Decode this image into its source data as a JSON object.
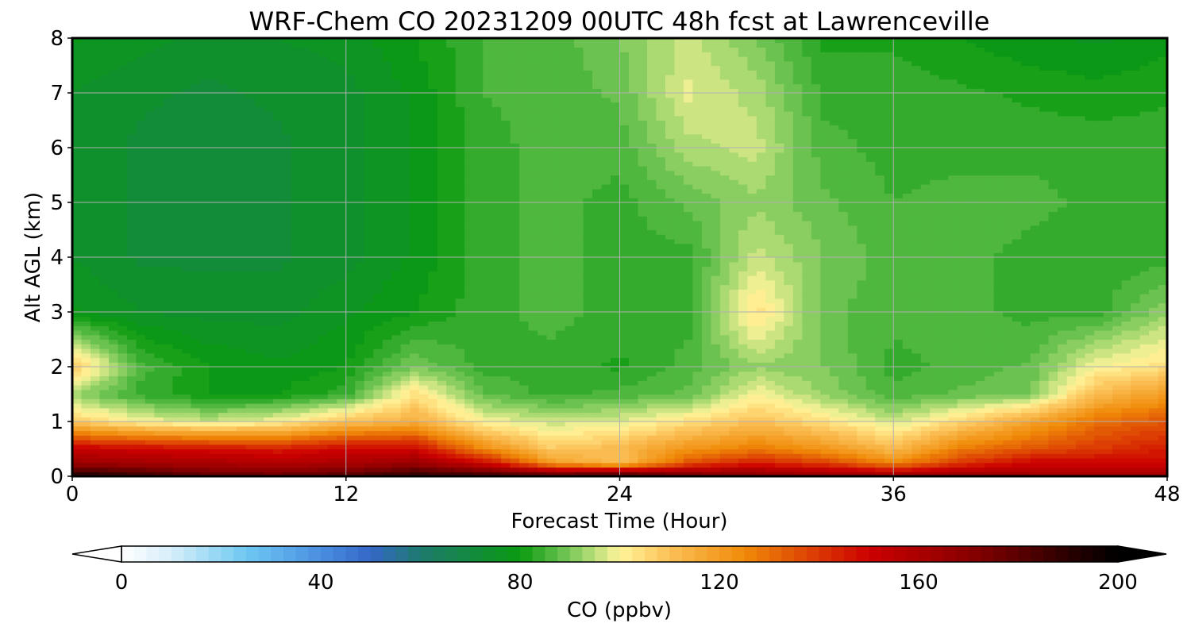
{
  "chart_data": {
    "type": "heatmap",
    "title": "WRF-Chem CO  20231209 00UTC 48h fcst at Lawrenceville",
    "xlabel": "Forecast Time (Hour)",
    "ylabel": "Alt AGL (km)",
    "xlim": [
      0,
      48
    ],
    "ylim": [
      0,
      8
    ],
    "xticks": [
      0,
      12,
      24,
      36,
      48
    ],
    "yticks": [
      0,
      1,
      2,
      3,
      4,
      5,
      6,
      7,
      8
    ],
    "grid": true,
    "x": [
      0,
      3,
      6,
      9,
      12,
      15,
      18,
      21,
      24,
      27,
      30,
      33,
      36,
      39,
      42,
      45,
      48
    ],
    "y": [
      0,
      0.25,
      0.5,
      1,
      1.5,
      2,
      3,
      4,
      5,
      6,
      7,
      8
    ],
    "z": [
      [
        195,
        188,
        180,
        178,
        182,
        190,
        188,
        185,
        190,
        178,
        172,
        168,
        166,
        168,
        165,
        163,
        162
      ],
      [
        165,
        162,
        160,
        158,
        160,
        165,
        150,
        120,
        110,
        135,
        145,
        138,
        125,
        140,
        150,
        150,
        150
      ],
      [
        152,
        150,
        148,
        145,
        150,
        150,
        125,
        108,
        112,
        122,
        128,
        122,
        112,
        128,
        135,
        140,
        145
      ],
      [
        108,
        100,
        96,
        100,
        110,
        115,
        100,
        96,
        98,
        104,
        110,
        104,
        96,
        106,
        118,
        130,
        135
      ],
      [
        92,
        84,
        80,
        80,
        84,
        104,
        88,
        84,
        86,
        88,
        100,
        92,
        86,
        88,
        90,
        112,
        120
      ],
      [
        108,
        86,
        80,
        78,
        80,
        90,
        84,
        84,
        82,
        86,
        92,
        90,
        84,
        86,
        88,
        100,
        104
      ],
      [
        78,
        75,
        74,
        74,
        77,
        80,
        84,
        86,
        84,
        84,
        104,
        88,
        86,
        86,
        84,
        84,
        92
      ],
      [
        75,
        72,
        72,
        72,
        74,
        78,
        84,
        86,
        84,
        84,
        96,
        90,
        86,
        86,
        84,
        83,
        84
      ],
      [
        74,
        72,
        71,
        72,
        74,
        78,
        84,
        86,
        84,
        88,
        92,
        88,
        85,
        86,
        86,
        84,
        84
      ],
      [
        74,
        72,
        71,
        72,
        74,
        78,
        84,
        86,
        86,
        94,
        96,
        86,
        84,
        84,
        84,
        84,
        84
      ],
      [
        75,
        73,
        72,
        73,
        74,
        78,
        85,
        86,
        88,
        98,
        94,
        84,
        84,
        83,
        82,
        81,
        82
      ],
      [
        78,
        76,
        74,
        75,
        76,
        80,
        85,
        86,
        90,
        96,
        90,
        82,
        82,
        80,
        78,
        77,
        79
      ]
    ],
    "colorbar": {
      "label": "CO  (ppbv)",
      "ticks": [
        0,
        40,
        80,
        120,
        160,
        200
      ],
      "range": [
        0,
        200
      ],
      "extend": "both",
      "stops": [
        {
          "v": 0,
          "c": "#ffffff"
        },
        {
          "v": 10,
          "c": "#d6eefa"
        },
        {
          "v": 25,
          "c": "#6ec8f2"
        },
        {
          "v": 40,
          "c": "#4a8ee0"
        },
        {
          "v": 50,
          "c": "#3567c8"
        },
        {
          "v": 60,
          "c": "#1e7a6e"
        },
        {
          "v": 80,
          "c": "#0a9a10"
        },
        {
          "v": 90,
          "c": "#79c85a"
        },
        {
          "v": 100,
          "c": "#fff59a"
        },
        {
          "v": 110,
          "c": "#fbc056"
        },
        {
          "v": 125,
          "c": "#f08a08"
        },
        {
          "v": 150,
          "c": "#cc0000"
        },
        {
          "v": 170,
          "c": "#8a0000"
        },
        {
          "v": 190,
          "c": "#2a0000"
        },
        {
          "v": 200,
          "c": "#000000"
        }
      ]
    }
  }
}
